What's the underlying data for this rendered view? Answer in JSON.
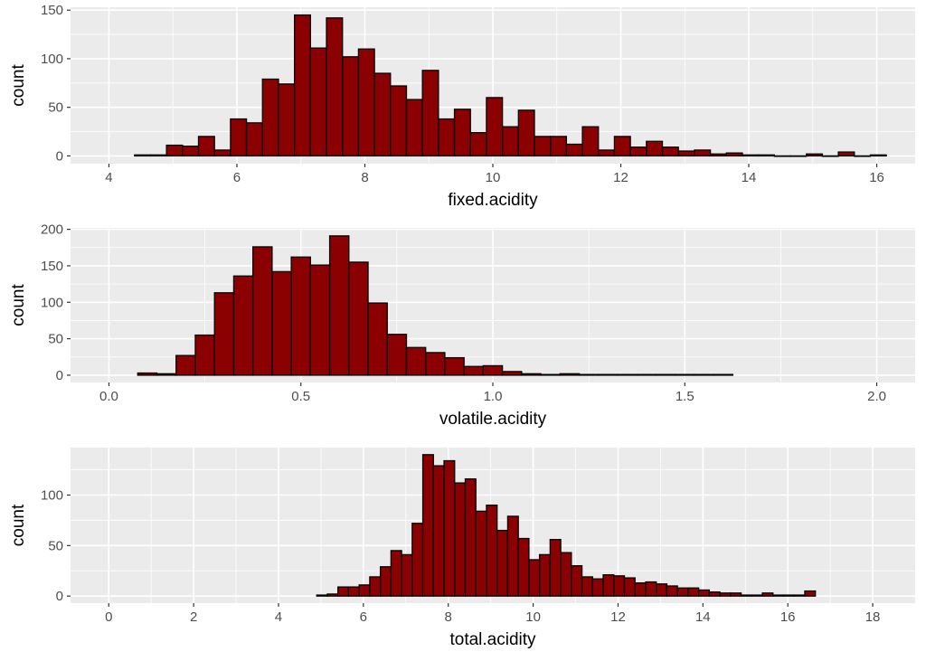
{
  "colors": {
    "bar_fill": "#8B0000",
    "bar_outline": "#000000",
    "panel": "#EBEBEB",
    "grid": "#FFFFFF"
  },
  "chart_data": [
    {
      "type": "bar",
      "xlabel": "fixed.acidity",
      "ylabel": "count",
      "xlim": [
        3.4,
        16.6
      ],
      "ylim": [
        -8,
        153
      ],
      "xticks": [
        4,
        6,
        8,
        10,
        12,
        14,
        16
      ],
      "yticks": [
        0,
        50,
        100,
        150
      ],
      "grid": true,
      "bin_width": 0.25,
      "bin_start": 4.4,
      "values": [
        1,
        1,
        11,
        10,
        20,
        6,
        38,
        34,
        79,
        74,
        145,
        111,
        142,
        102,
        110,
        85,
        72,
        58,
        88,
        38,
        48,
        24,
        60,
        30,
        47,
        20,
        20,
        12,
        30,
        6,
        20,
        9,
        15,
        9,
        5,
        6,
        2,
        3,
        1,
        1,
        0,
        0,
        2,
        0,
        4,
        0,
        1
      ]
    },
    {
      "type": "bar",
      "xlabel": "volatile.acidity",
      "ylabel": "count",
      "xlim": [
        -0.1,
        2.1
      ],
      "ylim": [
        -10,
        202
      ],
      "xticks": [
        0.0,
        0.5,
        1.0,
        1.5,
        2.0
      ],
      "xtick_labels": [
        "0.0",
        "0.5",
        "1.0",
        "1.5",
        "2.0"
      ],
      "yticks": [
        0,
        50,
        100,
        150,
        200
      ],
      "grid": true,
      "bin_width": 0.05,
      "bin_start": 0.075,
      "values": [
        3,
        2,
        27,
        55,
        113,
        136,
        176,
        142,
        162,
        151,
        191,
        155,
        99,
        56,
        38,
        31,
        24,
        12,
        13,
        5,
        2,
        1,
        2,
        1,
        1,
        1,
        1,
        1,
        1,
        1,
        1
      ]
    },
    {
      "type": "bar",
      "xlabel": "total.acidity",
      "ylabel": "count",
      "xlim": [
        -0.9,
        19.0
      ],
      "ylim": [
        -7,
        147
      ],
      "xticks": [
        0,
        2,
        4,
        6,
        8,
        10,
        12,
        14,
        16,
        18
      ],
      "yticks": [
        0,
        50,
        100
      ],
      "grid": true,
      "bin_width": 0.25,
      "bin_start": 4.9,
      "values": [
        1,
        2,
        9,
        9,
        11,
        19,
        29,
        45,
        41,
        72,
        140,
        129,
        134,
        112,
        116,
        84,
        90,
        65,
        79,
        57,
        36,
        41,
        56,
        43,
        30,
        19,
        17,
        21,
        20,
        18,
        13,
        14,
        12,
        10,
        8,
        8,
        6,
        4,
        3,
        3,
        1,
        1,
        3,
        1,
        1,
        1,
        5
      ]
    }
  ]
}
